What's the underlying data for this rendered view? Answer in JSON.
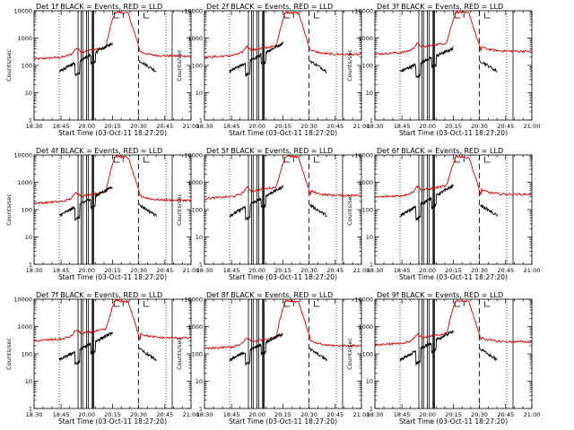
{
  "figure_title": "",
  "chart_data": {
    "type": "line",
    "grid": "off",
    "legend": "none",
    "y_scale": "log",
    "ylim": [
      1,
      10000
    ],
    "ylabel": "Counts/sec",
    "xlabel": "Start Time (03-Oct-11 18:27:20)",
    "x_ticks": [
      "18:30",
      "18:45",
      "20:00",
      "20:15",
      "20:30",
      "20:45",
      "21:00"
    ],
    "y_ticks": [
      "1",
      "10",
      "100",
      "1000",
      "10000"
    ],
    "colors": {
      "events": "#000000",
      "lld": "#d40000"
    },
    "panels": [
      {
        "title": "Det 1f BLACK = Events, RED = LLD",
        "lld_base": 200,
        "events_peak": 650
      },
      {
        "title": "Det 2f BLACK = Events, RED = LLD",
        "lld_base": 230,
        "events_peak": 650
      },
      {
        "title": "Det 3f BLACK = Events, RED = LLD",
        "lld_base": 300,
        "events_peak": 420
      },
      {
        "title": "Det 4f BLACK = Events, RED = LLD",
        "lld_base": 200,
        "events_peak": 700
      },
      {
        "title": "Det 5f BLACK = Events, RED = LLD",
        "lld_base": 300,
        "events_peak": 700
      },
      {
        "title": "Det 6f BLACK = Events, RED = LLD",
        "lld_base": 330,
        "events_peak": 750
      },
      {
        "title": "Det 7f BLACK = Events, RED = LLD",
        "lld_base": 350,
        "events_peak": 600
      },
      {
        "title": "Det 8f BLACK = Events, RED = LLD",
        "lld_base": 180,
        "events_peak": 550
      },
      {
        "title": "Det 9f BLACK = Events, RED = LLD",
        "lld_base": 250,
        "events_peak": 700
      }
    ]
  }
}
